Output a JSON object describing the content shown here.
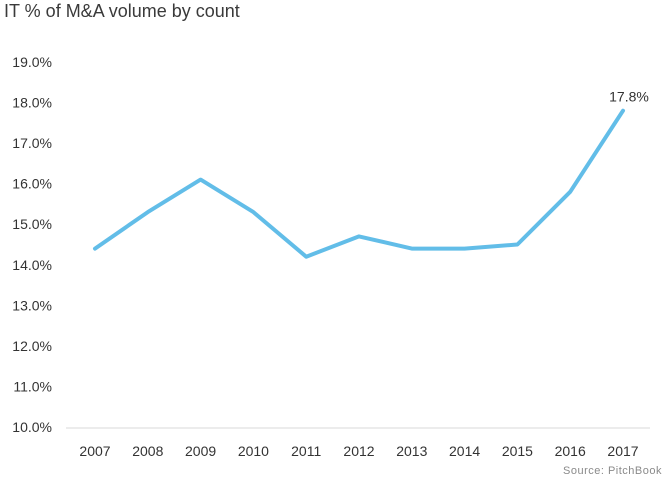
{
  "chart_data": {
    "type": "line",
    "title": "IT % of M&A volume by count",
    "xlabel": "",
    "ylabel": "",
    "categories": [
      "2007",
      "2008",
      "2009",
      "2010",
      "2011",
      "2012",
      "2013",
      "2014",
      "2015",
      "2016",
      "2017"
    ],
    "series": [
      {
        "name": "IT % of M&A volume by count",
        "values": [
          14.4,
          15.3,
          16.1,
          15.3,
          14.2,
          14.7,
          14.4,
          14.4,
          14.5,
          15.8,
          17.8
        ],
        "color": "#62bde8"
      }
    ],
    "ylim": [
      10.0,
      19.0
    ],
    "yticks": [
      "10.0%",
      "11.0%",
      "12.0%",
      "13.0%",
      "14.0%",
      "15.0%",
      "16.0%",
      "17.0%",
      "18.0%",
      "19.0%"
    ],
    "annotations": [
      {
        "category": "2017",
        "text": "17.8%"
      }
    ],
    "grid": false,
    "legend": "none",
    "source": "Source: PitchBook"
  }
}
